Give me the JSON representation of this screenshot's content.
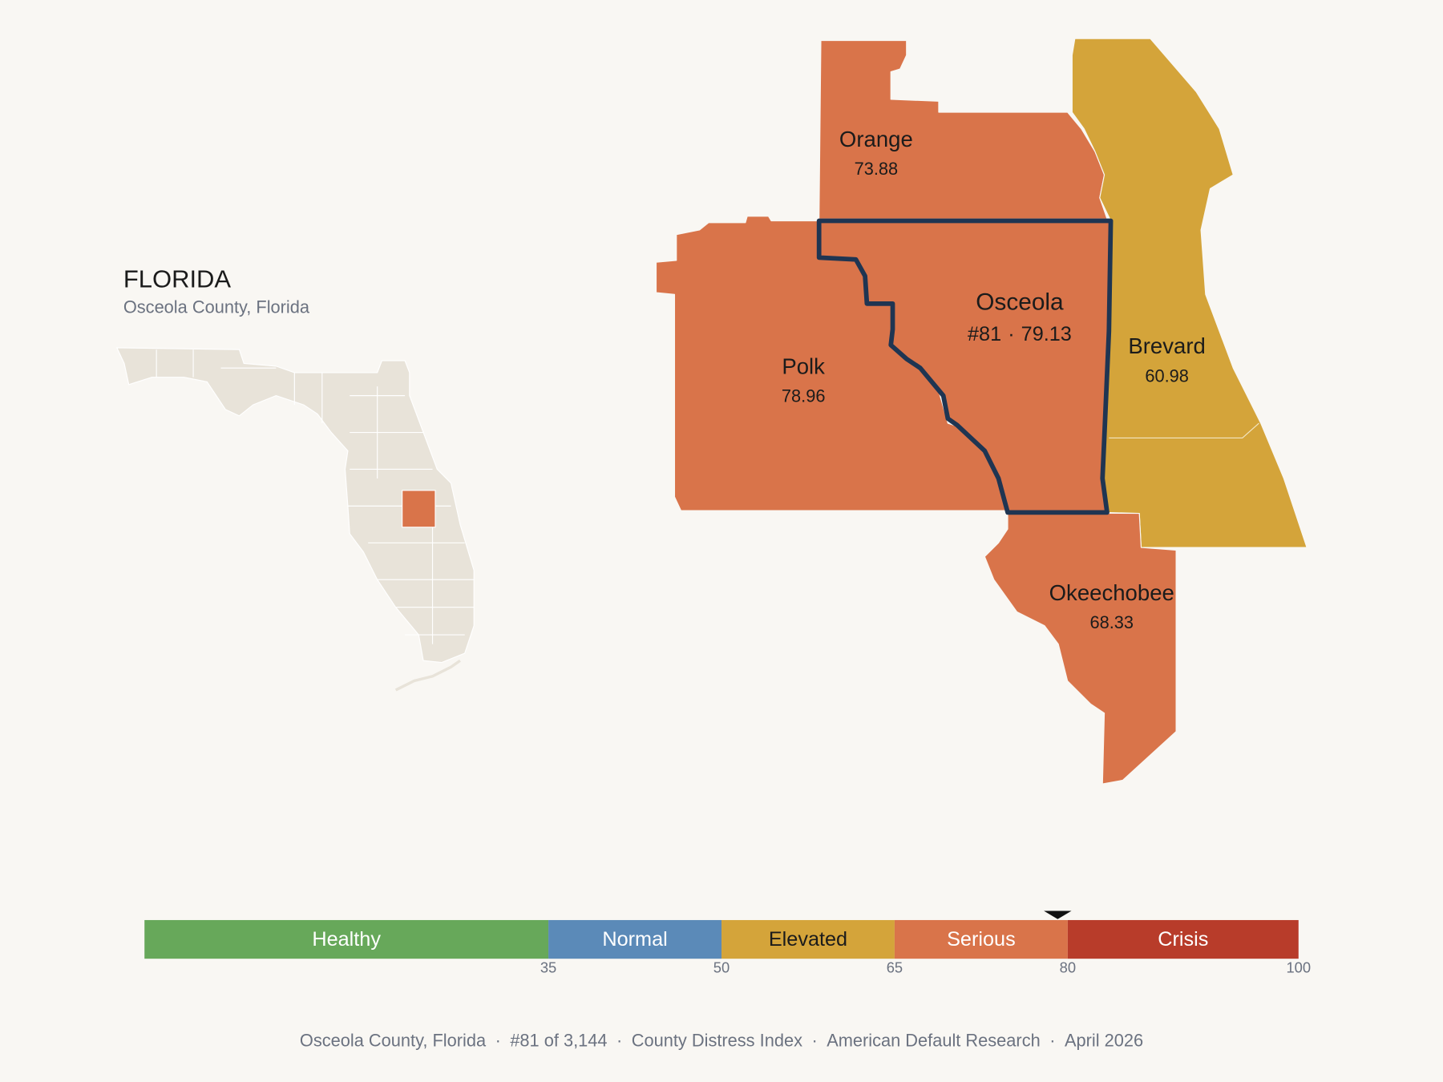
{
  "header": {
    "title": "FLORIDA",
    "subtitle": "Osceola County, Florida"
  },
  "map": {
    "counties": [
      {
        "name": "Osceola",
        "rank": "#81",
        "score": 79.13,
        "focus": true
      },
      {
        "name": "Orange",
        "score": 73.88
      },
      {
        "name": "Polk",
        "score": 78.96
      },
      {
        "name": "Brevard",
        "score": 60.98
      },
      {
        "name": "Okeechobee",
        "score": 68.33
      }
    ]
  },
  "separator": "·",
  "scale": {
    "lim": [
      0,
      100
    ],
    "bands": [
      {
        "label": "Healthy",
        "max": 35,
        "color": "#67a85a"
      },
      {
        "label": "Normal",
        "max": 50,
        "color": "#5b8ab8"
      },
      {
        "label": "Elevated",
        "max": 65,
        "color": "#d4a43a"
      },
      {
        "label": "Serious",
        "max": 80,
        "color": "#d9744a"
      },
      {
        "label": "Crisis",
        "max": 100,
        "color": "#b83c2a"
      }
    ]
  },
  "footer": [
    "Osceola County, Florida",
    "#81 of 3,144",
    "County Distress Index",
    "American Default Research",
    "April 2026"
  ]
}
